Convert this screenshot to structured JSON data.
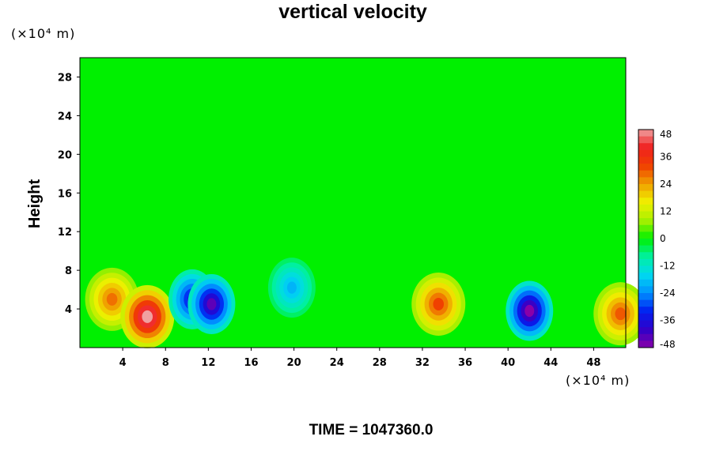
{
  "chart_data": {
    "type": "heatmap",
    "title": "vertical velocity",
    "ylabel": "Height",
    "y_unit": "(×10⁴ m)",
    "x_unit": "(×10⁴ m)",
    "x_ticks": [
      "4",
      "8",
      "12",
      "16",
      "20",
      "24",
      "28",
      "32",
      "36",
      "40",
      "44",
      "48"
    ],
    "y_ticks": [
      "4",
      "8",
      "12",
      "16",
      "20",
      "24",
      "28"
    ],
    "xlim": [
      0,
      51
    ],
    "ylim": [
      0,
      30
    ],
    "colorbar": {
      "ticks": [
        "48",
        "36",
        "24",
        "12",
        "0",
        "-12",
        "-24",
        "-36",
        "-48"
      ],
      "range": [
        -48,
        48
      ],
      "colormap": "rainbow: purple-blue-cyan-green-yellow-red-pink"
    },
    "features": [
      {
        "kind": "updraft",
        "x": 3,
        "y": 5,
        "value": 28
      },
      {
        "kind": "updraft",
        "x": 6.3,
        "y": 3.2,
        "value": 48
      },
      {
        "kind": "downdraft",
        "x": 10.5,
        "y": 5,
        "value": -36
      },
      {
        "kind": "downdraft",
        "x": 12.3,
        "y": 4.5,
        "value": -44
      },
      {
        "kind": "downdraft",
        "x": 19.8,
        "y": 6.2,
        "value": -20
      },
      {
        "kind": "updraft",
        "x": 33.5,
        "y": 4.5,
        "value": 32
      },
      {
        "kind": "downdraft",
        "x": 42,
        "y": 3.8,
        "value": -48
      },
      {
        "kind": "updraft",
        "x": 50.5,
        "y": 3.5,
        "value": 30
      }
    ]
  },
  "footer": {
    "time_label": "TIME = 1047360.0"
  }
}
